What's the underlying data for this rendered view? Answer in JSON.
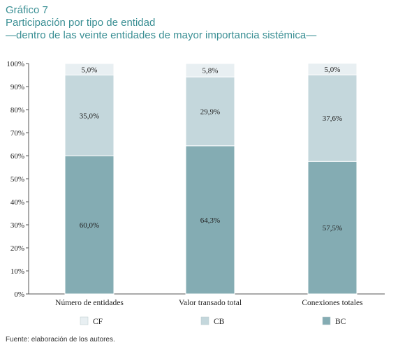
{
  "header": {
    "label": "Gráfico 7",
    "title": "Participación por tipo de entidad",
    "subtitle": "—dentro de las veinte entidades de mayor importancia sistémica—"
  },
  "chart_data": {
    "type": "bar",
    "stacked": true,
    "categories": [
      "Número de entidades",
      "Valor transado total",
      "Conexiones totales"
    ],
    "series": [
      {
        "name": "BC",
        "values": [
          60.0,
          64.3,
          57.5
        ],
        "labels": [
          "60,0%",
          "64,3%",
          "57,5%"
        ],
        "color": "#84acb3"
      },
      {
        "name": "CB",
        "values": [
          35.0,
          29.9,
          37.6
        ],
        "labels": [
          "35,0%",
          "29,9%",
          "37,6%"
        ],
        "color": "#c4d7dc"
      },
      {
        "name": "CF",
        "values": [
          5.0,
          5.8,
          5.0
        ],
        "labels": [
          "5,0%",
          "5,8%",
          "5,0%"
        ],
        "color": "#e8eff2"
      }
    ],
    "legend_order": [
      "CF",
      "CB",
      "BC"
    ],
    "ylim": [
      0,
      100
    ],
    "yticks": [
      0,
      10,
      20,
      30,
      40,
      50,
      60,
      70,
      80,
      90,
      100
    ],
    "ytick_labels": [
      "0%",
      "10%",
      "20%",
      "30%",
      "40%",
      "50%",
      "60%",
      "70%",
      "80%",
      "90%",
      "100%"
    ],
    "grid": false,
    "legend_position": "bottom"
  },
  "footer": {
    "source": "Fuente: elaboración de los autores."
  }
}
